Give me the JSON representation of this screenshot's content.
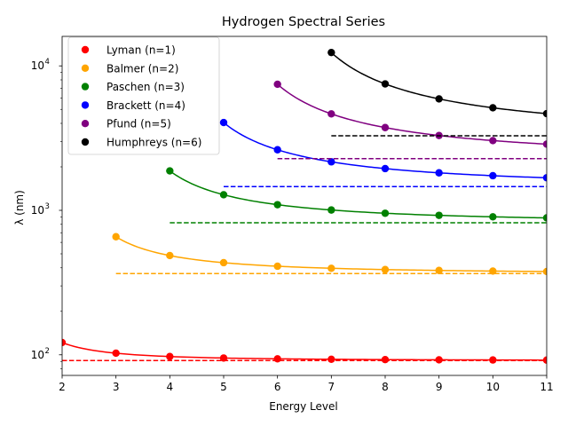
{
  "chart_data": {
    "type": "scatter",
    "title": "Hydrogen Spectral Series",
    "xlabel": "Energy Level",
    "ylabel": "λ (nm)",
    "xlim": [
      2,
      11
    ],
    "ylim": [
      72,
      16000
    ],
    "yscale": "log",
    "x_ticks": [
      "2",
      "3",
      "4",
      "5",
      "6",
      "7",
      "8",
      "9",
      "10",
      "11"
    ],
    "y_ticks": [
      {
        "value": 100,
        "base": "10",
        "exp": "2"
      },
      {
        "value": 1000,
        "base": "10",
        "exp": "3"
      },
      {
        "value": 10000,
        "base": "10",
        "exp": "4"
      }
    ],
    "grid": false,
    "legend_position": "top-left",
    "series": [
      {
        "name": "Lyman (n=1)",
        "color": "#ff0000",
        "n": 1,
        "x": [
          2,
          3,
          4,
          5,
          6,
          7,
          8,
          9,
          10,
          11
        ],
        "y": [
          121.6,
          102.6,
          97.3,
          95.0,
          93.8,
          93.1,
          92.6,
          92.3,
          92.1,
          91.9
        ],
        "limit": 91.2
      },
      {
        "name": "Balmer (n=2)",
        "color": "#ffa500",
        "n": 2,
        "x": [
          3,
          4,
          5,
          6,
          7,
          8,
          9,
          10,
          11
        ],
        "y": [
          656.5,
          486.3,
          434.2,
          410.3,
          397.1,
          389.0,
          383.6,
          379.9,
          377.2
        ],
        "limit": 364.7
      },
      {
        "name": "Paschen (n=3)",
        "color": "#008000",
        "n": 3,
        "x": [
          4,
          5,
          6,
          7,
          8,
          9,
          10,
          11
        ],
        "y": [
          1875.6,
          1282.2,
          1094.1,
          1005.2,
          954.9,
          923.2,
          901.8,
          886.6
        ],
        "limit": 820.6
      },
      {
        "name": "Brackett (n=4)",
        "color": "#0000ff",
        "n": 4,
        "x": [
          5,
          6,
          7,
          8,
          9,
          10,
          11
        ],
        "y": [
          4052.5,
          2625.9,
          2166.1,
          1945.1,
          1818.1,
          1736.7,
          1681.3
        ],
        "limit": 1458.8
      },
      {
        "name": "Pfund (n=5)",
        "color": "#800080",
        "n": 5,
        "x": [
          6,
          7,
          8,
          9,
          10,
          11
        ],
        "y": [
          7459.9,
          4653.8,
          3740.6,
          3297.0,
          3039.2,
          2873.0
        ],
        "limit": 2279.4
      },
      {
        "name": "Humphreys (n=6)",
        "color": "#000000",
        "n": 6,
        "x": [
          7,
          8,
          9,
          10,
          11
        ],
        "y": [
          12371.9,
          7502.5,
          5908.2,
          5128.7,
          4672.5
        ],
        "limit": 3282.4
      }
    ]
  }
}
